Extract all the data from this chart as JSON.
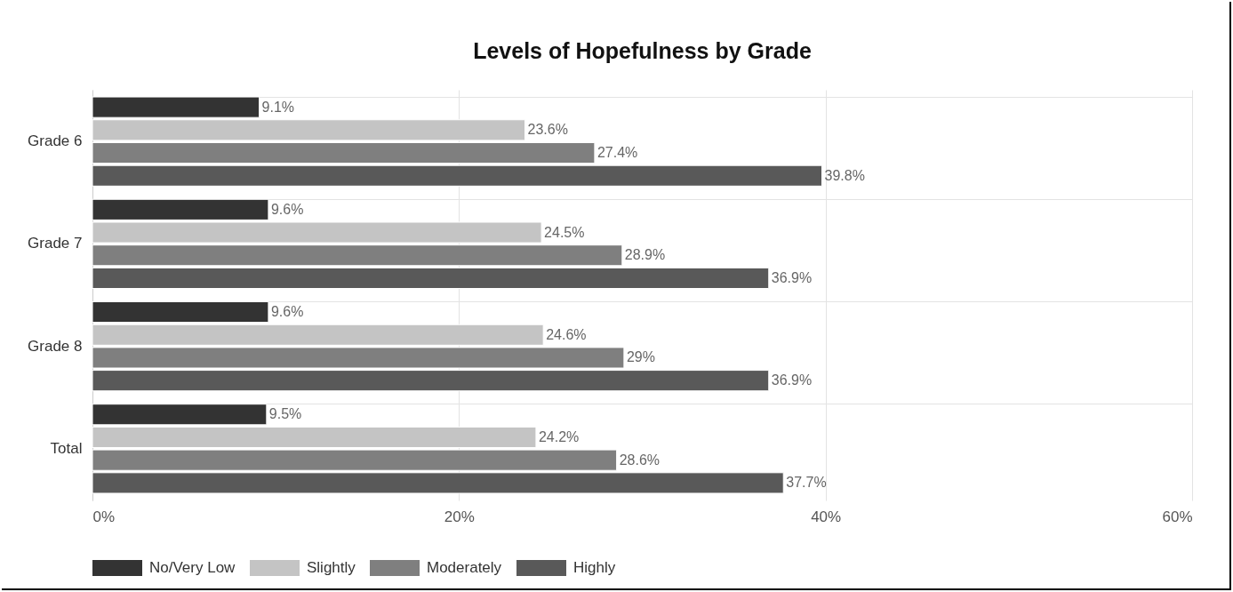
{
  "chart_data": {
    "type": "bar",
    "orientation": "horizontal",
    "title": "Levels of Hopefulness by Grade",
    "categories": [
      "Grade 6",
      "Grade 7",
      "Grade 8",
      "Total"
    ],
    "series": [
      {
        "name": "No/Very Low",
        "color": "#333333",
        "values": [
          9.1,
          9.6,
          9.6,
          9.5
        ],
        "value_labels": [
          "9.1%",
          "9.6%",
          "9.6%",
          "9.5%"
        ]
      },
      {
        "name": "Slightly",
        "color": "#c4c4c4",
        "values": [
          23.6,
          24.5,
          24.6,
          24.2
        ],
        "value_labels": [
          "23.6%",
          "24.5%",
          "24.6%",
          "24.2%"
        ]
      },
      {
        "name": "Moderately",
        "color": "#7f7f7f",
        "values": [
          27.4,
          28.9,
          29,
          28.6
        ],
        "value_labels": [
          "27.4%",
          "28.9%",
          "29%",
          "28.6%"
        ]
      },
      {
        "name": "Highly",
        "color": "#595959",
        "values": [
          39.8,
          36.9,
          36.9,
          37.7
        ],
        "value_labels": [
          "39.8%",
          "36.9%",
          "36.9%",
          "37.7%"
        ]
      }
    ],
    "xlim": [
      0,
      60
    ],
    "xticks": [
      {
        "value": 0,
        "label": "0%"
      },
      {
        "value": 20,
        "label": "20%"
      },
      {
        "value": 40,
        "label": "40%"
      },
      {
        "value": 60,
        "label": "60%"
      }
    ],
    "grid": true,
    "legend": "bottom"
  }
}
